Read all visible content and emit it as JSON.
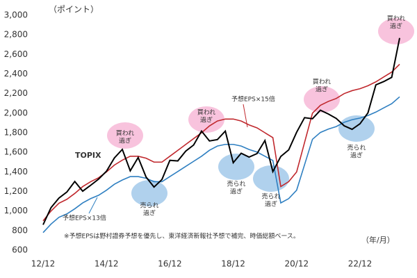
{
  "chart_data": {
    "type": "line",
    "y_label": "（ポイント）",
    "x_label": "（年/月）",
    "note": "※予想EPSは野村證券予想を優先し、東洋経済新報社予想で補完、時価総額ベース。",
    "categories": [
      "12/12",
      null,
      null,
      null,
      null,
      null,
      null,
      null,
      "14/12",
      null,
      null,
      null,
      null,
      null,
      null,
      null,
      "16/12",
      null,
      null,
      null,
      null,
      null,
      null,
      null,
      "18/12",
      null,
      null,
      null,
      null,
      null,
      null,
      null,
      "20/12",
      null,
      null,
      null,
      null,
      null,
      null,
      null,
      "22/12",
      null,
      null,
      null,
      null,
      null
    ],
    "series": [
      {
        "name": "TOPIX",
        "color": "#000000",
        "values": [
          860,
          1035,
          1133,
          1194,
          1302,
          1203,
          1263,
          1326,
          1407,
          1543,
          1630,
          1411,
          1547,
          1347,
          1245,
          1322,
          1518,
          1512,
          1612,
          1675,
          1817,
          1716,
          1730,
          1817,
          1494,
          1591,
          1551,
          1587,
          1721,
          1403,
          1558,
          1625,
          1805,
          1954,
          1943,
          2030,
          1992,
          1946,
          1871,
          1835,
          1892,
          2003,
          2289,
          2323,
          2366,
          2768
        ]
      },
      {
        "name": "予想EPS×15倍",
        "color": "#c0282d",
        "values": [
          900,
          1000,
          1080,
          1120,
          1180,
          1250,
          1300,
          1340,
          1400,
          1470,
          1520,
          1560,
          1560,
          1540,
          1500,
          1500,
          1560,
          1620,
          1680,
          1740,
          1800,
          1870,
          1920,
          1940,
          1940,
          1920,
          1880,
          1850,
          1800,
          1750,
          1250,
          1300,
          1400,
          1700,
          2000,
          2080,
          2120,
          2150,
          2200,
          2230,
          2250,
          2280,
          2320,
          2370,
          2420,
          2500
        ]
      },
      {
        "name": "予想EPS×13倍",
        "color": "#2e7fc1",
        "values": [
          780,
          867,
          936,
          971,
          1023,
          1083,
          1127,
          1161,
          1213,
          1274,
          1317,
          1352,
          1352,
          1335,
          1300,
          1300,
          1352,
          1404,
          1456,
          1508,
          1560,
          1621,
          1664,
          1681,
          1681,
          1664,
          1629,
          1603,
          1560,
          1517,
          1083,
          1127,
          1213,
          1473,
          1733,
          1803,
          1837,
          1863,
          1907,
          1933,
          1950,
          1976,
          2011,
          2054,
          2097,
          2167
        ]
      }
    ],
    "ylim": [
      600,
      3000
    ],
    "yticks": [
      {
        "value": 600,
        "label": "600"
      },
      {
        "value": 800,
        "label": "800"
      },
      {
        "value": 1000,
        "label": "1,000"
      },
      {
        "value": 1200,
        "label": "1,200"
      },
      {
        "value": 1400,
        "label": "1,400"
      },
      {
        "value": 1600,
        "label": "1,600"
      },
      {
        "value": 1800,
        "label": "1,800"
      },
      {
        "value": 2000,
        "label": "2,000"
      },
      {
        "value": 2200,
        "label": "2,200"
      },
      {
        "value": 2400,
        "label": "2,400"
      },
      {
        "value": 2600,
        "label": "2,600"
      },
      {
        "value": 2800,
        "label": "2,800"
      },
      {
        "value": 3000,
        "label": "3,000"
      }
    ],
    "annotations": [
      {
        "kind": "overbought",
        "lines": [
          "買われ",
          "過ぎ"
        ]
      },
      {
        "kind": "oversold",
        "lines": [
          "売られ",
          "過ぎ"
        ]
      },
      {
        "kind": "overbought",
        "lines": [
          "買われ",
          "過ぎ"
        ]
      },
      {
        "kind": "oversold",
        "lines": [
          "売られ",
          "過ぎ"
        ]
      },
      {
        "kind": "oversold",
        "lines": [
          "売られ",
          "過ぎ"
        ]
      },
      {
        "kind": "overbought",
        "lines": [
          "買われ",
          "過ぎ"
        ]
      },
      {
        "kind": "oversold",
        "lines": [
          "売られ",
          "過ぎ"
        ]
      },
      {
        "kind": "overbought",
        "lines": [
          "買われ",
          "過ぎ"
        ]
      }
    ]
  }
}
